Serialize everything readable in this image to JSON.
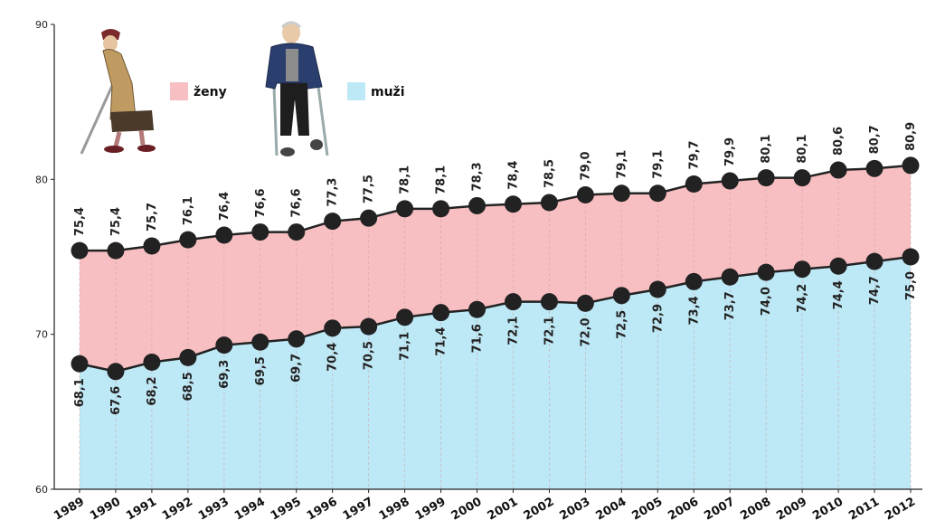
{
  "chart_data": {
    "type": "area",
    "categories": [
      "1989",
      "1990",
      "1991",
      "1992",
      "1993",
      "1994",
      "1995",
      "1996",
      "1997",
      "1998",
      "1999",
      "2000",
      "2001",
      "2002",
      "2003",
      "2004",
      "2005",
      "2006",
      "2007",
      "2008",
      "2009",
      "2010",
      "2011",
      "2012"
    ],
    "series": [
      {
        "name": "ženy",
        "color": "#f8bfc2",
        "values": [
          75.4,
          75.4,
          75.7,
          76.1,
          76.4,
          76.6,
          76.6,
          77.3,
          77.5,
          78.1,
          78.1,
          78.3,
          78.4,
          78.5,
          79.0,
          79.1,
          79.1,
          79.7,
          79.9,
          80.1,
          80.1,
          80.6,
          80.7,
          80.9
        ],
        "labels": [
          "75,4",
          "75,4",
          "75,7",
          "76,1",
          "76,4",
          "76,6",
          "76,6",
          "77,3",
          "77,5",
          "78,1",
          "78,1",
          "78,3",
          "78,4",
          "78,5",
          "79,0",
          "79,1",
          "79,1",
          "79,7",
          "79,9",
          "80,1",
          "80,1",
          "80,6",
          "80,7",
          "80,9"
        ]
      },
      {
        "name": "muži",
        "color": "#bde8f5",
        "values": [
          68.1,
          67.6,
          68.2,
          68.5,
          69.3,
          69.5,
          69.7,
          70.4,
          70.5,
          71.1,
          71.4,
          71.6,
          72.1,
          72.1,
          72.0,
          72.5,
          72.9,
          73.4,
          73.7,
          74.0,
          74.2,
          74.4,
          74.7,
          75.0
        ],
        "labels": [
          "68,1",
          "67,6",
          "68,2",
          "68,5",
          "69,3",
          "69,5",
          "69,7",
          "70,4",
          "70,5",
          "71,1",
          "71,4",
          "71,6",
          "72,1",
          "72,1",
          "72,0",
          "72,5",
          "72,9",
          "73,4",
          "73,7",
          "74,0",
          "74,2",
          "74,4",
          "74,7",
          "75,0"
        ]
      }
    ],
    "ylim": [
      60,
      90
    ],
    "yticks": [
      "60",
      "70",
      "80",
      "90"
    ],
    "legend": [
      "ženy",
      "muži"
    ],
    "marker_color": "#222222",
    "line_color": "#222222"
  }
}
